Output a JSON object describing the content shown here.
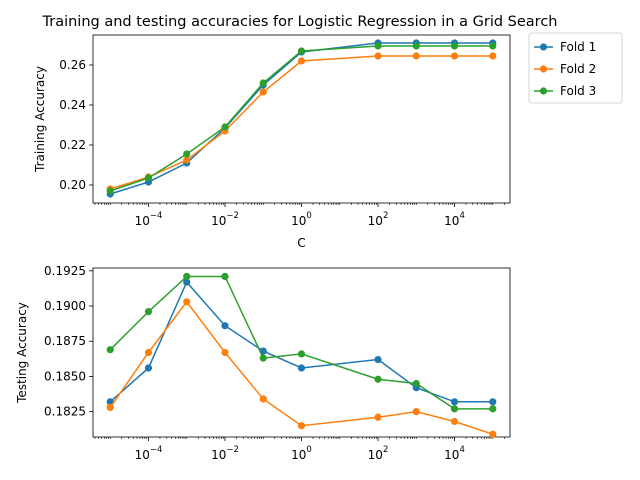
{
  "chart_data": [
    {
      "type": "line",
      "title": "Training and testing accuracies for Logistic Regression in a Grid Search",
      "xlabel": "C",
      "ylabel": "Training Accuracy",
      "xscale": "log",
      "x": [
        1e-05,
        0.0001,
        0.001,
        0.01,
        0.1,
        1,
        100,
        1000,
        10000,
        100000
      ],
      "xticks": [
        -4,
        -2,
        0,
        2,
        4
      ],
      "yticks": [
        "0.20",
        "0.22",
        "0.24",
        "0.26"
      ],
      "ylim": [
        0.191,
        0.275
      ],
      "series": [
        {
          "name": "Fold 1",
          "color": "#1f77b4",
          "values": [
            0.1955,
            0.2015,
            0.211,
            0.2285,
            0.25,
            0.2665,
            0.271,
            0.271,
            0.271,
            0.271
          ]
        },
        {
          "name": "Fold 2",
          "color": "#ff7f0e",
          "values": [
            0.198,
            0.204,
            0.2125,
            0.227,
            0.2465,
            0.262,
            0.2645,
            0.2645,
            0.2645,
            0.2645
          ]
        },
        {
          "name": "Fold 3",
          "color": "#2ca02c",
          "values": [
            0.197,
            0.2035,
            0.2155,
            0.229,
            0.251,
            0.267,
            0.2695,
            0.2695,
            0.2695,
            0.2695
          ]
        }
      ]
    },
    {
      "type": "line",
      "xlabel": "",
      "ylabel": "Testing Accuracy",
      "xscale": "log",
      "x": [
        1e-05,
        0.0001,
        0.001,
        0.01,
        0.1,
        1,
        100,
        1000,
        10000,
        100000
      ],
      "xticks": [
        -4,
        -2,
        0,
        2,
        4
      ],
      "yticks": [
        "0.1825",
        "0.1850",
        "0.1875",
        "0.1900",
        "0.1925"
      ],
      "ylim": [
        0.1807,
        0.1927
      ],
      "series": [
        {
          "name": "Fold 1",
          "color": "#1f77b4",
          "values": [
            0.1832,
            0.1856,
            0.1917,
            0.1886,
            0.1868,
            0.1856,
            0.1862,
            0.1842,
            0.1832,
            0.1832
          ]
        },
        {
          "name": "Fold 2",
          "color": "#ff7f0e",
          "values": [
            0.1828,
            0.1867,
            0.1903,
            0.1867,
            0.1834,
            0.1815,
            0.1821,
            0.1825,
            0.1818,
            0.1809
          ]
        },
        {
          "name": "Fold 3",
          "color": "#2ca02c",
          "values": [
            0.1869,
            0.1896,
            0.1921,
            0.1921,
            0.1863,
            0.1866,
            0.1848,
            0.1845,
            0.1827,
            0.1827
          ]
        }
      ]
    }
  ],
  "legend": {
    "position": "upper-right-outside",
    "entries": [
      "Fold 1",
      "Fold 2",
      "Fold 3"
    ]
  }
}
